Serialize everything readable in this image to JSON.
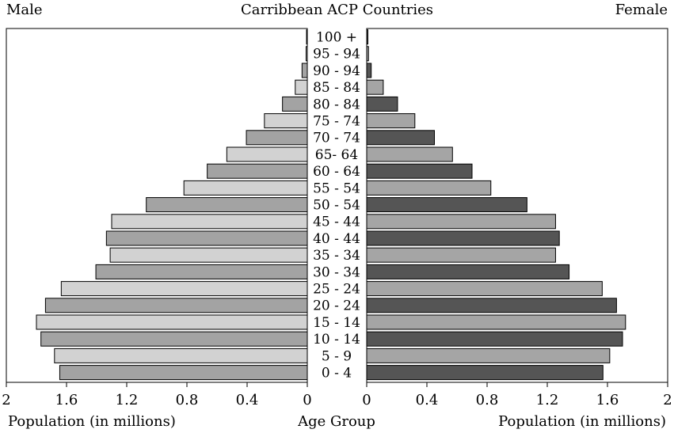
{
  "chart_data": {
    "type": "bar",
    "orientation": "horizontal",
    "layout": "population-pyramid",
    "title": "Carribbean ACP Countries",
    "left_label": "Male",
    "right_label": "Female",
    "xlabel_left": "Population (in millions)",
    "xlabel_center": "Age Group",
    "xlabel_right": "Population (in millions)",
    "xlim": [
      0,
      2
    ],
    "x_ticks": [
      "2",
      "1.6",
      "1.2",
      "0.8",
      "0.4",
      "0",
      "0",
      "0.4",
      "0.8",
      "1.2",
      "1.6",
      "2"
    ],
    "categories": [
      "100 +",
      "95 - 94",
      "90 - 94",
      "85 - 84",
      "80 - 84",
      "75 - 74",
      "70 - 74",
      "65- 64",
      "60 - 64",
      "55 - 54",
      "50 - 54",
      "45 - 44",
      "40 - 44",
      "35 - 34",
      "30 - 34",
      "25 - 24",
      "20 - 24",
      "15 - 14",
      "10 - 14",
      "5 - 9",
      "0 - 4"
    ],
    "series": [
      {
        "name": "Male",
        "values": [
          0.005,
          0.008,
          0.035,
          0.08,
          0.165,
          0.285,
          0.405,
          0.535,
          0.665,
          0.82,
          1.07,
          1.3,
          1.335,
          1.31,
          1.405,
          1.635,
          1.74,
          1.8,
          1.77,
          1.68,
          1.645
        ]
      },
      {
        "name": "Female",
        "values": [
          0.008,
          0.012,
          0.03,
          0.11,
          0.205,
          0.32,
          0.45,
          0.57,
          0.7,
          0.825,
          1.065,
          1.255,
          1.28,
          1.255,
          1.345,
          1.565,
          1.66,
          1.72,
          1.7,
          1.615,
          1.57
        ]
      }
    ],
    "colors": {
      "male_light": "#d2d2d2",
      "male_dark": "#a3a3a3",
      "female_light": "#a5a5a5",
      "female_dark": "#555555",
      "stroke": "#000000"
    },
    "grid": false
  }
}
